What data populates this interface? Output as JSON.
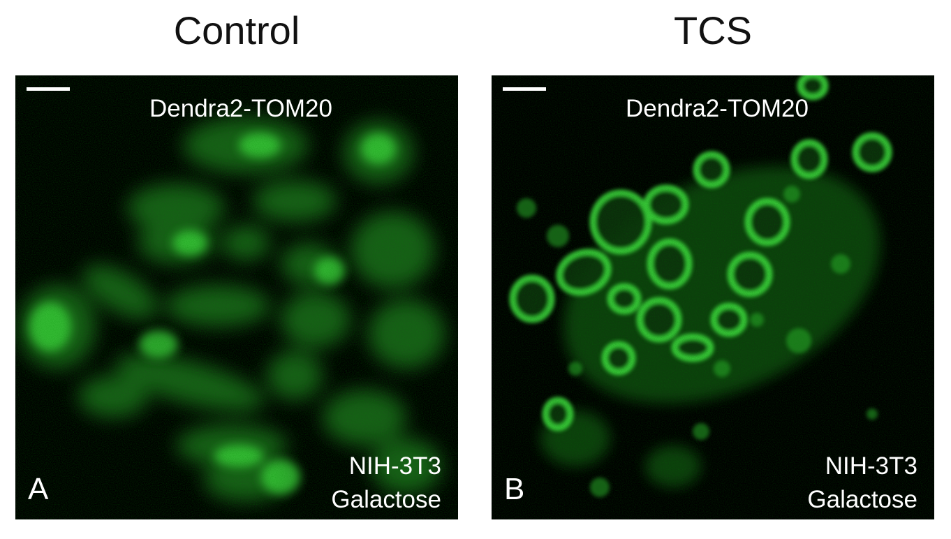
{
  "figure": {
    "panels": [
      {
        "id": "A",
        "title": "Control",
        "top_label": "Dendra2-TOM20",
        "bottom_label_line1": "NIH-3T3",
        "bottom_label_line2": "Galactose",
        "letter": "A"
      },
      {
        "id": "B",
        "title": "TCS",
        "top_label": "Dendra2-TOM20",
        "bottom_label_line1": "NIH-3T3",
        "bottom_label_line2": "Galactose",
        "letter": "B"
      }
    ],
    "colors": {
      "background": "#ffffff",
      "panel_background": "#000000",
      "fluorescence": "#3cd23c",
      "label_text": "#ffffff",
      "title_text": "#111111"
    }
  }
}
